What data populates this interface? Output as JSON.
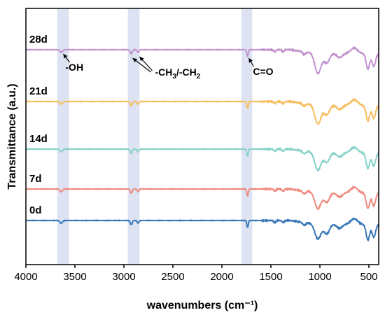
{
  "chart_data": {
    "type": "line",
    "xlabel": "wavenumbers (cm⁻¹)",
    "ylabel": "Transmittance (a.u.)",
    "xlim": [
      4000,
      400
    ],
    "x_reversed": true,
    "xticks": [
      4000,
      3500,
      3000,
      2500,
      2000,
      1500,
      1000,
      500
    ],
    "yticks": [],
    "grid": false,
    "legend": "none",
    "highlight_bands": [
      {
        "from": 3680,
        "to": 3560,
        "color": "#dde3f2"
      },
      {
        "from": 2960,
        "to": 2840,
        "color": "#dde3f2"
      },
      {
        "from": 1800,
        "to": 1690,
        "color": "#dde3f2"
      }
    ],
    "annotations": [
      {
        "text": "-OH",
        "points_to": 3640
      },
      {
        "text": "-CH",
        "sub1": "3",
        "mid": "/-CH",
        "sub2": "2",
        "points_to": [
          2925,
          2855
        ]
      },
      {
        "text": "C=O",
        "points_to": 1740
      }
    ],
    "series": [
      {
        "name": "0d",
        "color": "#3a78b8",
        "offset": 0
      },
      {
        "name": "7d",
        "color": "#ef8a80",
        "offset": 1
      },
      {
        "name": "14d",
        "color": "#86d2c8",
        "offset": 2
      },
      {
        "name": "21d",
        "color": "#f6bd5e",
        "offset": 3
      },
      {
        "name": "28d",
        "color": "#c193cf",
        "offset": 4
      }
    ]
  }
}
